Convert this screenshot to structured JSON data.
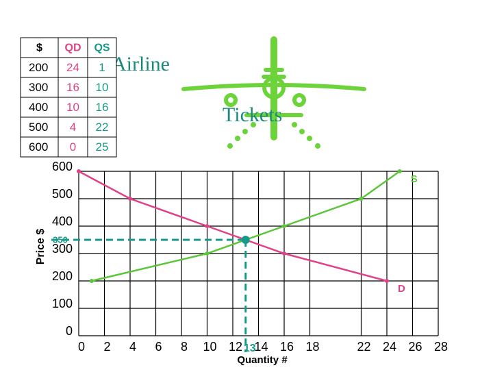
{
  "table": {
    "header": [
      "$",
      "QD",
      "QS"
    ],
    "rows": [
      [
        "200",
        "24",
        "1"
      ],
      [
        "300",
        "16",
        "10"
      ],
      [
        "400",
        "10",
        "16"
      ],
      [
        "500",
        "4",
        "22"
      ],
      [
        "600",
        "0",
        "25"
      ]
    ]
  },
  "logo": {
    "line1": "Airline",
    "line2": "Tickets"
  },
  "chart_data": {
    "type": "line",
    "xlabel": "Quantity #",
    "ylabel": "Price $",
    "xlim": [
      0,
      28
    ],
    "ylim": [
      0,
      600
    ],
    "xticks": [
      0,
      2,
      4,
      6,
      8,
      10,
      12,
      14,
      16,
      18,
      22,
      24,
      26,
      28
    ],
    "yticks": [
      0,
      100,
      200,
      300,
      400,
      500,
      600
    ],
    "grid": true,
    "series": [
      {
        "name": "D",
        "color": "#e0428a",
        "x": [
          0,
          4,
          10,
          16,
          24
        ],
        "values": [
          600,
          500,
          400,
          300,
          200
        ]
      },
      {
        "name": "S",
        "color": "#5cc53a",
        "x": [
          1,
          10,
          16,
          22,
          25
        ],
        "values": [
          200,
          300,
          400,
          500,
          600
        ]
      }
    ],
    "equilibrium": {
      "x": 13,
      "y": 350,
      "color": "#17998a"
    }
  }
}
